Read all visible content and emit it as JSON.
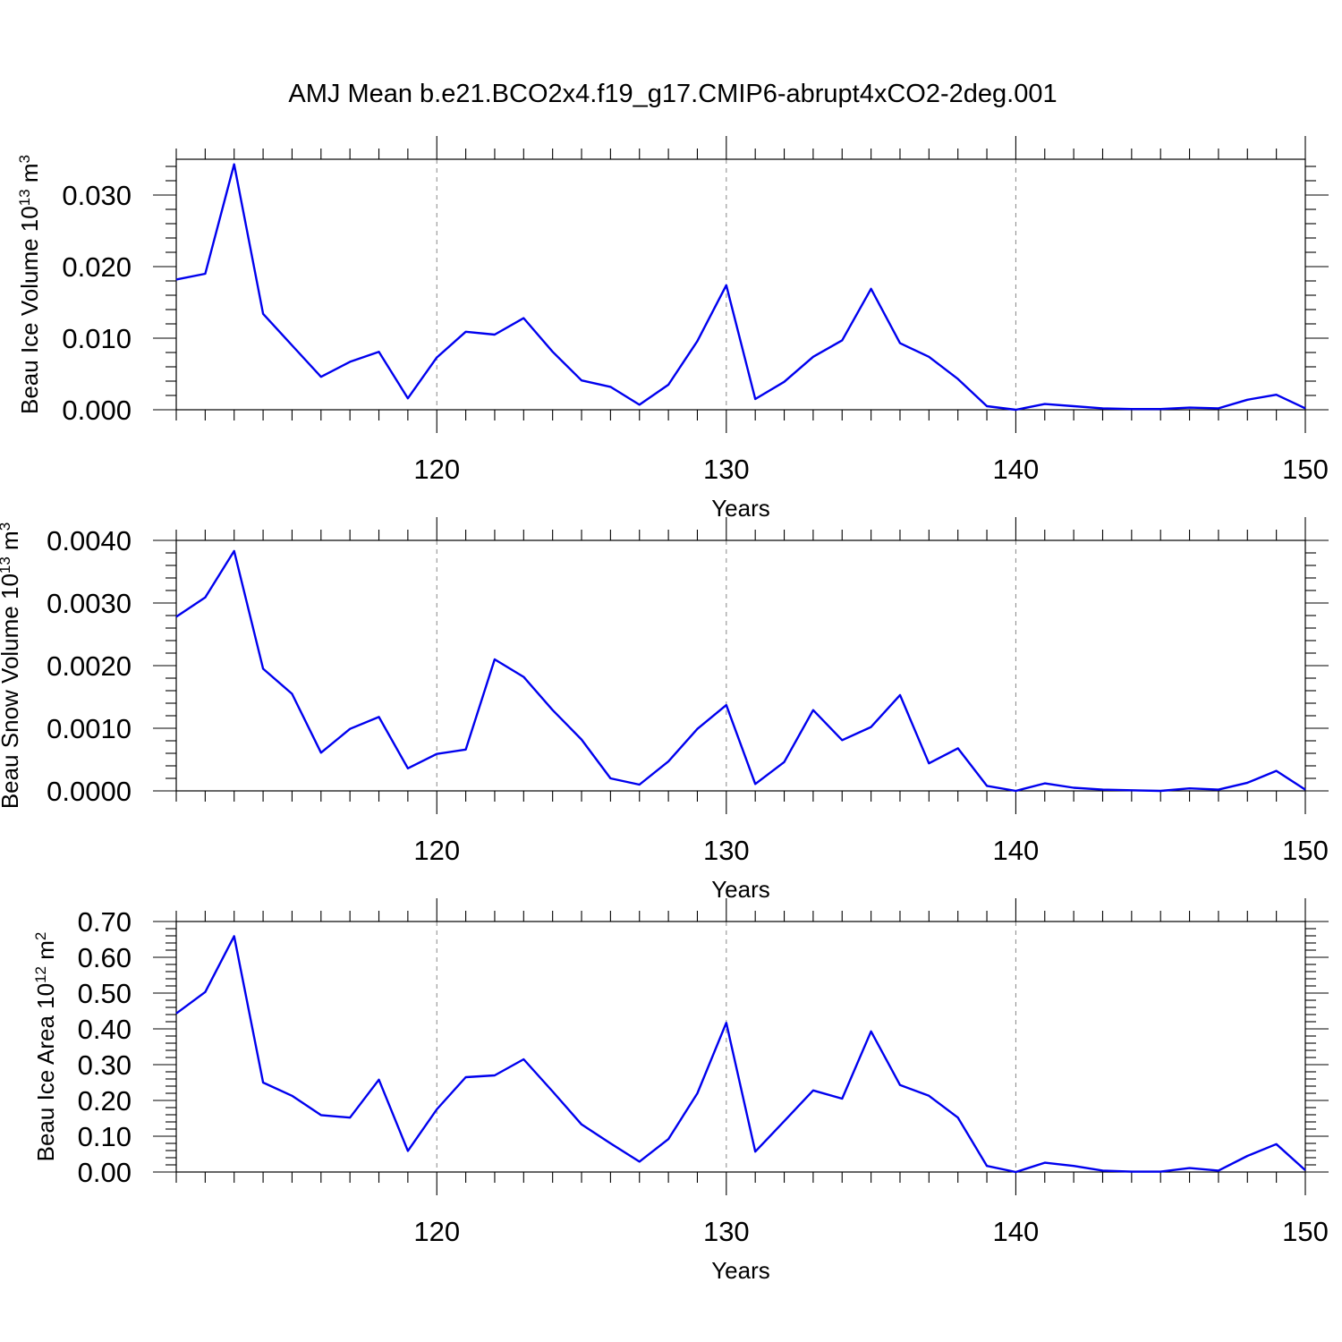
{
  "title": "AMJ Mean b.e21.BCO2x4.f19_g17.CMIP6-abrupt4xCO2-2deg.001",
  "colors": {
    "series": "#0000ee",
    "grid": "#888888",
    "axis": "#000000"
  },
  "chart_data": [
    {
      "type": "line",
      "ylabel": {
        "base": "Beau Ice Volume 10",
        "exp": "13",
        "unit": " m",
        "unit_exp": "3"
      },
      "xlabel": "Years",
      "xlim": [
        111,
        150
      ],
      "ylim": [
        0,
        0.035
      ],
      "xticks": [
        "120",
        "130",
        "140",
        "150"
      ],
      "yticks": [
        "0.000",
        "0.010",
        "0.020",
        "0.030"
      ],
      "grid": "vertical dashed at major x ticks",
      "x": [
        111,
        112,
        113,
        114,
        115,
        116,
        117,
        118,
        119,
        120,
        121,
        122,
        123,
        124,
        125,
        126,
        127,
        128,
        129,
        130,
        131,
        132,
        133,
        134,
        135,
        136,
        137,
        138,
        139,
        140,
        141,
        142,
        143,
        144,
        145,
        146,
        147,
        148,
        149,
        150
      ],
      "y": [
        0.0182,
        0.019,
        0.0343,
        0.0134,
        0.009,
        0.0046,
        0.0067,
        0.0081,
        0.0016,
        0.0073,
        0.0109,
        0.0105,
        0.0128,
        0.0081,
        0.0041,
        0.0032,
        0.0007,
        0.0035,
        0.0096,
        0.0174,
        0.0015,
        0.0039,
        0.0074,
        0.0097,
        0.0169,
        0.0093,
        0.0074,
        0.0043,
        0.0005,
        0.0,
        0.0008,
        0.0005,
        0.0002,
        0.0001,
        0.0001,
        0.0003,
        0.0002,
        0.0014,
        0.0021,
        0.0002
      ]
    },
    {
      "type": "line",
      "ylabel": {
        "base": "Beau Snow Volume 10",
        "exp": "13",
        "unit": " m",
        "unit_exp": "3"
      },
      "xlabel": "Years",
      "xlim": [
        111,
        150
      ],
      "ylim": [
        0,
        0.004
      ],
      "xticks": [
        "120",
        "130",
        "140",
        "150"
      ],
      "yticks": [
        "0.0000",
        "0.0010",
        "0.0020",
        "0.0030",
        "0.0040"
      ],
      "grid": "vertical dashed at major x ticks",
      "x": [
        111,
        112,
        113,
        114,
        115,
        116,
        117,
        118,
        119,
        120,
        121,
        122,
        123,
        124,
        125,
        126,
        127,
        128,
        129,
        130,
        131,
        132,
        133,
        134,
        135,
        136,
        137,
        138,
        139,
        140,
        141,
        142,
        143,
        144,
        145,
        146,
        147,
        148,
        149,
        150
      ],
      "y": [
        0.00278,
        0.00309,
        0.00383,
        0.00195,
        0.00155,
        0.00061,
        0.00099,
        0.00118,
        0.00036,
        0.00059,
        0.00066,
        0.0021,
        0.00182,
        0.00129,
        0.00082,
        0.0002,
        0.0001,
        0.00047,
        0.00099,
        0.00137,
        0.00011,
        0.00046,
        0.00129,
        0.00081,
        0.00102,
        0.00153,
        0.00044,
        0.00068,
        8e-05,
        0.0,
        0.00012,
        5e-05,
        2e-05,
        1e-05,
        0.0,
        4e-05,
        2e-05,
        0.00013,
        0.00032,
        2e-05
      ]
    },
    {
      "type": "line",
      "ylabel": {
        "base": "Beau Ice Area 10",
        "exp": "12",
        "unit": " m",
        "unit_exp": "2"
      },
      "xlabel": "Years",
      "xlim": [
        111,
        150
      ],
      "ylim": [
        0,
        0.7
      ],
      "xticks": [
        "120",
        "130",
        "140",
        "150"
      ],
      "yticks": [
        "0.00",
        "0.10",
        "0.20",
        "0.30",
        "0.40",
        "0.50",
        "0.60",
        "0.70"
      ],
      "grid": "vertical dashed at major x ticks",
      "x": [
        111,
        112,
        113,
        114,
        115,
        116,
        117,
        118,
        119,
        120,
        121,
        122,
        123,
        124,
        125,
        126,
        127,
        128,
        129,
        130,
        131,
        132,
        133,
        134,
        135,
        136,
        137,
        138,
        139,
        140,
        141,
        142,
        143,
        144,
        145,
        146,
        147,
        148,
        149,
        150
      ],
      "y": [
        0.443,
        0.503,
        0.659,
        0.25,
        0.213,
        0.159,
        0.152,
        0.258,
        0.059,
        0.175,
        0.265,
        0.27,
        0.315,
        0.225,
        0.133,
        0.08,
        0.029,
        0.092,
        0.22,
        0.417,
        0.057,
        0.142,
        0.228,
        0.205,
        0.393,
        0.243,
        0.213,
        0.152,
        0.017,
        0.0,
        0.026,
        0.017,
        0.004,
        0.001,
        0.001,
        0.011,
        0.004,
        0.045,
        0.078,
        0.005
      ]
    }
  ]
}
